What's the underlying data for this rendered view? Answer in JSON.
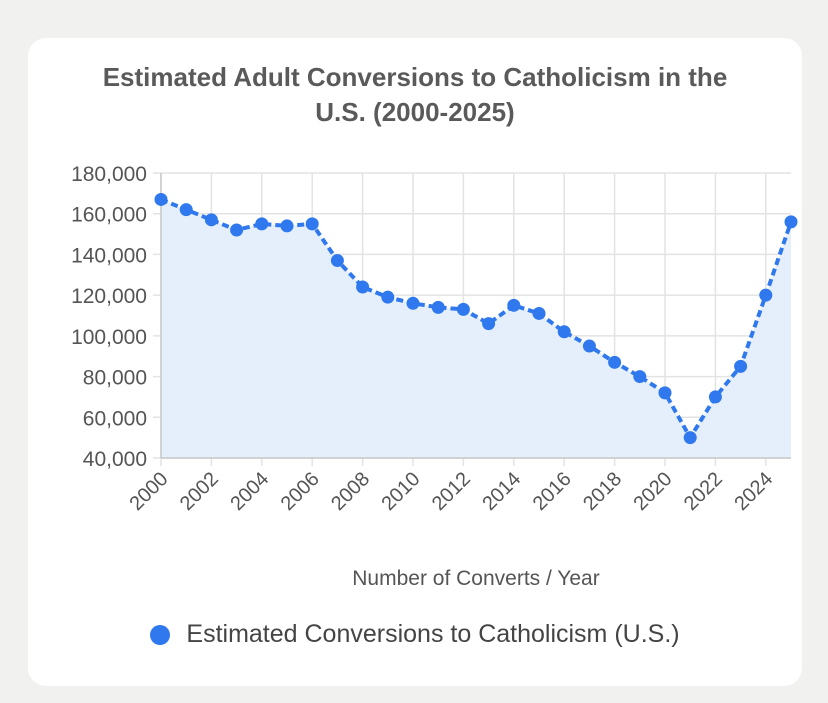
{
  "chart_data": {
    "type": "line",
    "title_line1": "Estimated Adult Conversions to Catholicism in the",
    "title_line2": "U.S. (2000-2025)",
    "xlabel": "Number of Converts / Year",
    "ylabel": "",
    "ylim": [
      40000,
      180000
    ],
    "yticks": [
      "180,000",
      "160,000",
      "140,000",
      "120,000",
      "100,000",
      "80,000",
      "60,000",
      "40,000"
    ],
    "ytick_values": [
      180000,
      160000,
      140000,
      120000,
      100000,
      80000,
      60000,
      40000
    ],
    "xticks": [
      "2000",
      "2002",
      "2004",
      "2006",
      "2008",
      "2010",
      "2012",
      "2014",
      "2016",
      "2018",
      "2020",
      "2022",
      "2024"
    ],
    "xlim": [
      2000,
      2025
    ],
    "grid": true,
    "legend_position": "bottom",
    "x": [
      2000,
      2001,
      2002,
      2003,
      2004,
      2005,
      2006,
      2007,
      2008,
      2009,
      2010,
      2011,
      2012,
      2013,
      2014,
      2015,
      2016,
      2017,
      2018,
      2019,
      2020,
      2021,
      2022,
      2023,
      2024,
      2025
    ],
    "series": [
      {
        "name": "Estimated Conversions to Catholicism (U.S.)",
        "values": [
          167000,
          162000,
          157000,
          152000,
          155000,
          154000,
          155000,
          137000,
          124000,
          119000,
          116000,
          114000,
          113000,
          106000,
          115000,
          111000,
          102000,
          95000,
          87000,
          80000,
          72000,
          50000,
          70000,
          85000,
          120000,
          156000
        ],
        "color": "#2f78ed",
        "fill": "#e4effb"
      }
    ]
  }
}
